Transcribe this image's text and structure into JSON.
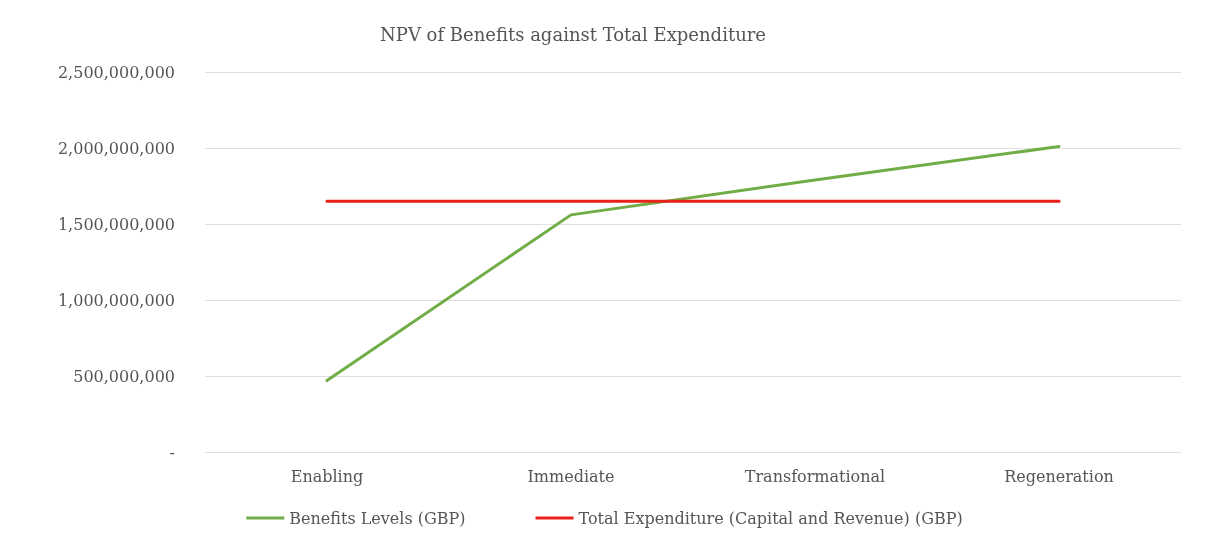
{
  "chart_data": {
    "type": "line",
    "title": "NPV of Benefits against Total Expenditure",
    "categories": [
      "Enabling",
      "Immediate",
      "Transformational",
      "Regeneration"
    ],
    "series": [
      {
        "name": "Benefits Levels (GBP)",
        "color": "#70ad47",
        "values": [
          470000000,
          1560000000,
          1790000000,
          2010000000
        ]
      },
      {
        "name": "Total Expenditure (Capital and Revenue) (GBP)",
        "color": "#e8211a",
        "values": [
          1650000000,
          1650000000,
          1650000000,
          1650000000
        ]
      }
    ],
    "ylim": [
      0,
      2500000000
    ],
    "yticks": [
      {
        "value": 0,
        "label": "-"
      },
      {
        "value": 500000000,
        "label": "500,000,000"
      },
      {
        "value": 1000000000,
        "label": "1,000,000,000"
      },
      {
        "value": 1500000000,
        "label": "1,500,000,000"
      },
      {
        "value": 2000000000,
        "label": "2,000,000,000"
      },
      {
        "value": 2500000000,
        "label": "2,500,000,000"
      }
    ],
    "grid": "y",
    "legend": "bottom",
    "marker": "none",
    "line_style": "solid"
  }
}
